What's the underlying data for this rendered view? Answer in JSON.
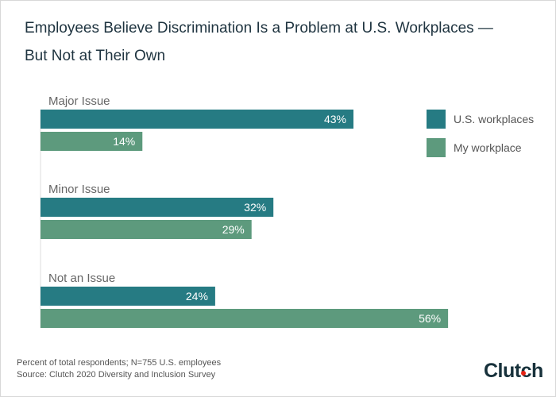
{
  "title_lines": [
    "Employees Believe Discrimination Is a Problem at U.S. Workplaces —",
    "But Not at Their Own"
  ],
  "footnote": "Percent of total respondents; N=755 U.S. employees",
  "source": "Source: Clutch 2020 Diversity and Inclusion Survey",
  "logo_text": "Clutch",
  "chart_data": {
    "type": "bar",
    "orientation": "horizontal",
    "categories": [
      "Major Issue",
      "Minor Issue",
      "Not an Issue"
    ],
    "series": [
      {
        "name": "U.S. workplaces",
        "values": [
          43,
          32,
          24
        ],
        "color": "#267b83"
      },
      {
        "name": "My workplace",
        "values": [
          14,
          29,
          56
        ],
        "color": "#5d9a7d"
      }
    ],
    "value_suffix": "%",
    "xlim": [
      0,
      100
    ],
    "grid": false,
    "legend": "right"
  }
}
